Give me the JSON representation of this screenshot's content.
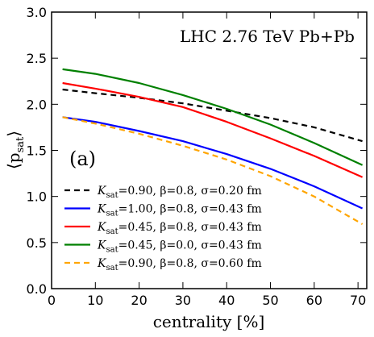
{
  "chart_data": {
    "type": "line",
    "annotation": "LHC 2.76 TeV Pb+Pb",
    "panel_label": "(a)",
    "xlabel": "centrality [%]",
    "ylabel": "⟨p_sat⟩",
    "xlim": [
      0,
      72
    ],
    "ylim": [
      0.0,
      3.0
    ],
    "xticks": [
      "0",
      "10",
      "20",
      "30",
      "40",
      "50",
      "60",
      "70"
    ],
    "yticks": [
      "0.0",
      "0.5",
      "1.0",
      "1.5",
      "2.0",
      "2.5",
      "3.0"
    ],
    "grid": false,
    "legend_position": "lower-left",
    "x": [
      2.5,
      10,
      20,
      30,
      40,
      50,
      60,
      71
    ],
    "series": [
      {
        "name": "K_sat=0.90, β=0.8, σ=0.20 fm",
        "color": "#000000",
        "dashed": true,
        "values": [
          2.16,
          2.12,
          2.07,
          2.01,
          1.93,
          1.85,
          1.75,
          1.6
        ]
      },
      {
        "name": "K_sat=1.00, β=0.8, σ=0.43 fm",
        "color": "#0000ff",
        "dashed": false,
        "values": [
          1.86,
          1.81,
          1.71,
          1.6,
          1.46,
          1.3,
          1.11,
          0.87
        ]
      },
      {
        "name": "K_sat=0.45, β=0.8, σ=0.43 fm",
        "color": "#ff0000",
        "dashed": false,
        "values": [
          2.23,
          2.17,
          2.08,
          1.97,
          1.81,
          1.63,
          1.44,
          1.21
        ]
      },
      {
        "name": "K_sat=0.45, β=0.0, σ=0.43 fm",
        "color": "#008000",
        "dashed": false,
        "values": [
          2.38,
          2.33,
          2.23,
          2.1,
          1.95,
          1.78,
          1.58,
          1.34
        ]
      },
      {
        "name": "K_sat=0.90, β=0.8, σ=0.60 fm",
        "color": "#ffa500",
        "dashed": true,
        "values": [
          1.86,
          1.79,
          1.68,
          1.55,
          1.4,
          1.22,
          1.0,
          0.7
        ]
      }
    ]
  }
}
